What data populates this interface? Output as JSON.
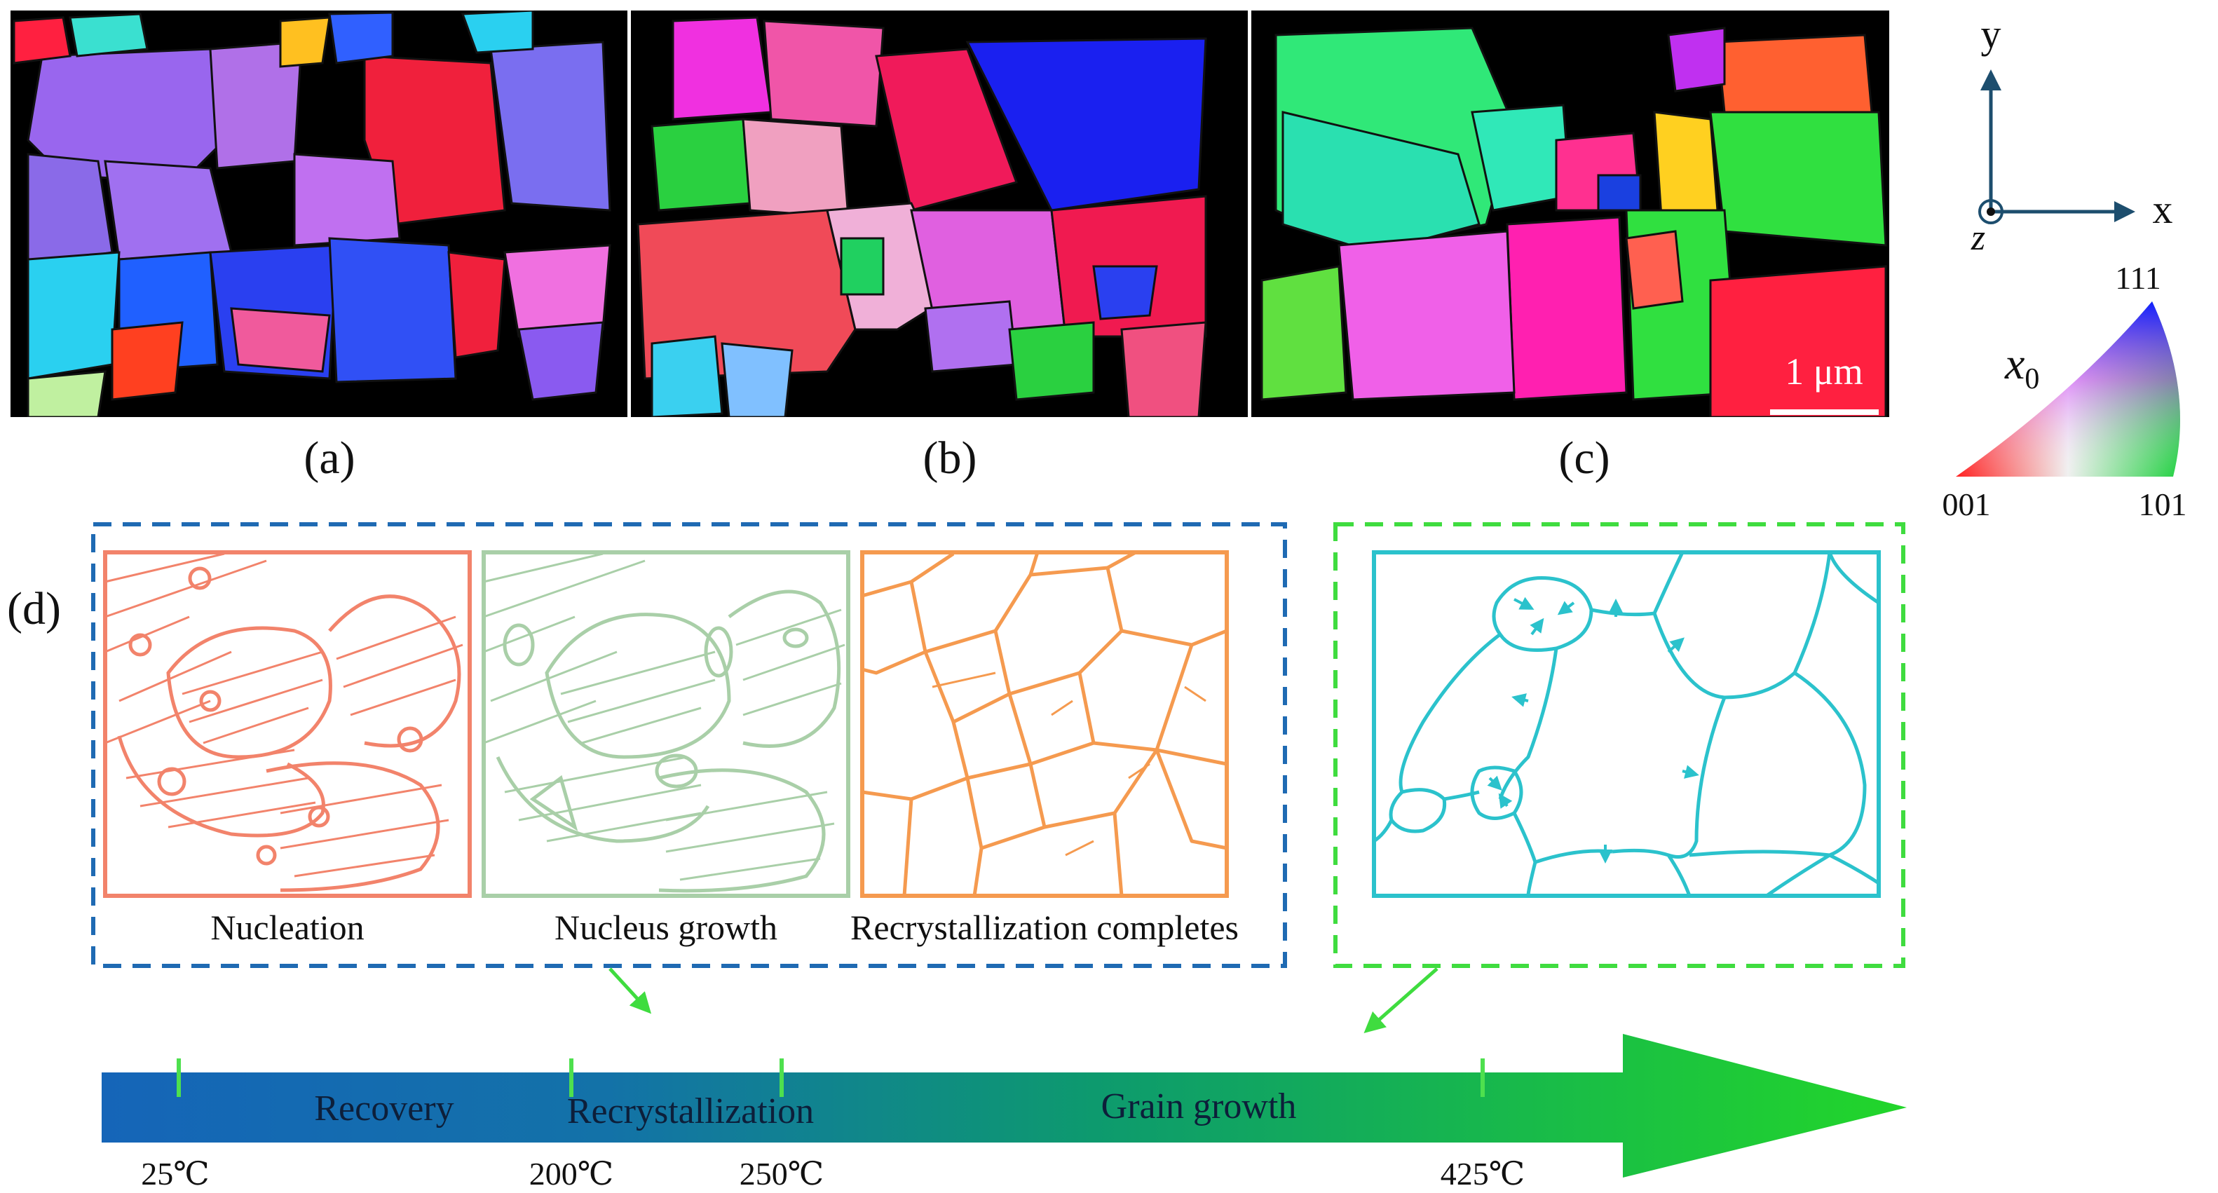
{
  "panels": {
    "a": "(a)",
    "b": "(b)",
    "c": "(c)",
    "d": "(d)"
  },
  "scale_bar": "1 μm",
  "axes": {
    "x": "x",
    "y": "y",
    "z": "z"
  },
  "ipf": {
    "symbol": "x",
    "subscript": "0",
    "corner_001": "001",
    "corner_101": "101",
    "corner_111": "111"
  },
  "stages": {
    "nucleation": "Nucleation",
    "nucleus_growth": "Nucleus growth",
    "recrystallization_completes": "Recrystallization completes"
  },
  "timeline": {
    "phases": [
      "Recovery",
      "Recrystallization",
      "Grain growth"
    ],
    "temperatures": [
      "25℃",
      "200℃",
      "250℃",
      "425℃"
    ]
  },
  "colors": {
    "nucleation": "#f2836b",
    "nucleus_growth": "#a9cfa8",
    "recrystallization": "#f59a4f",
    "grain_growth": "#2bc2cc",
    "dashed_blue": "#1f6ab3",
    "dashed_green": "#3fdc3f",
    "arrow_start": "#1565b8",
    "arrow_end": "#22d62a"
  }
}
